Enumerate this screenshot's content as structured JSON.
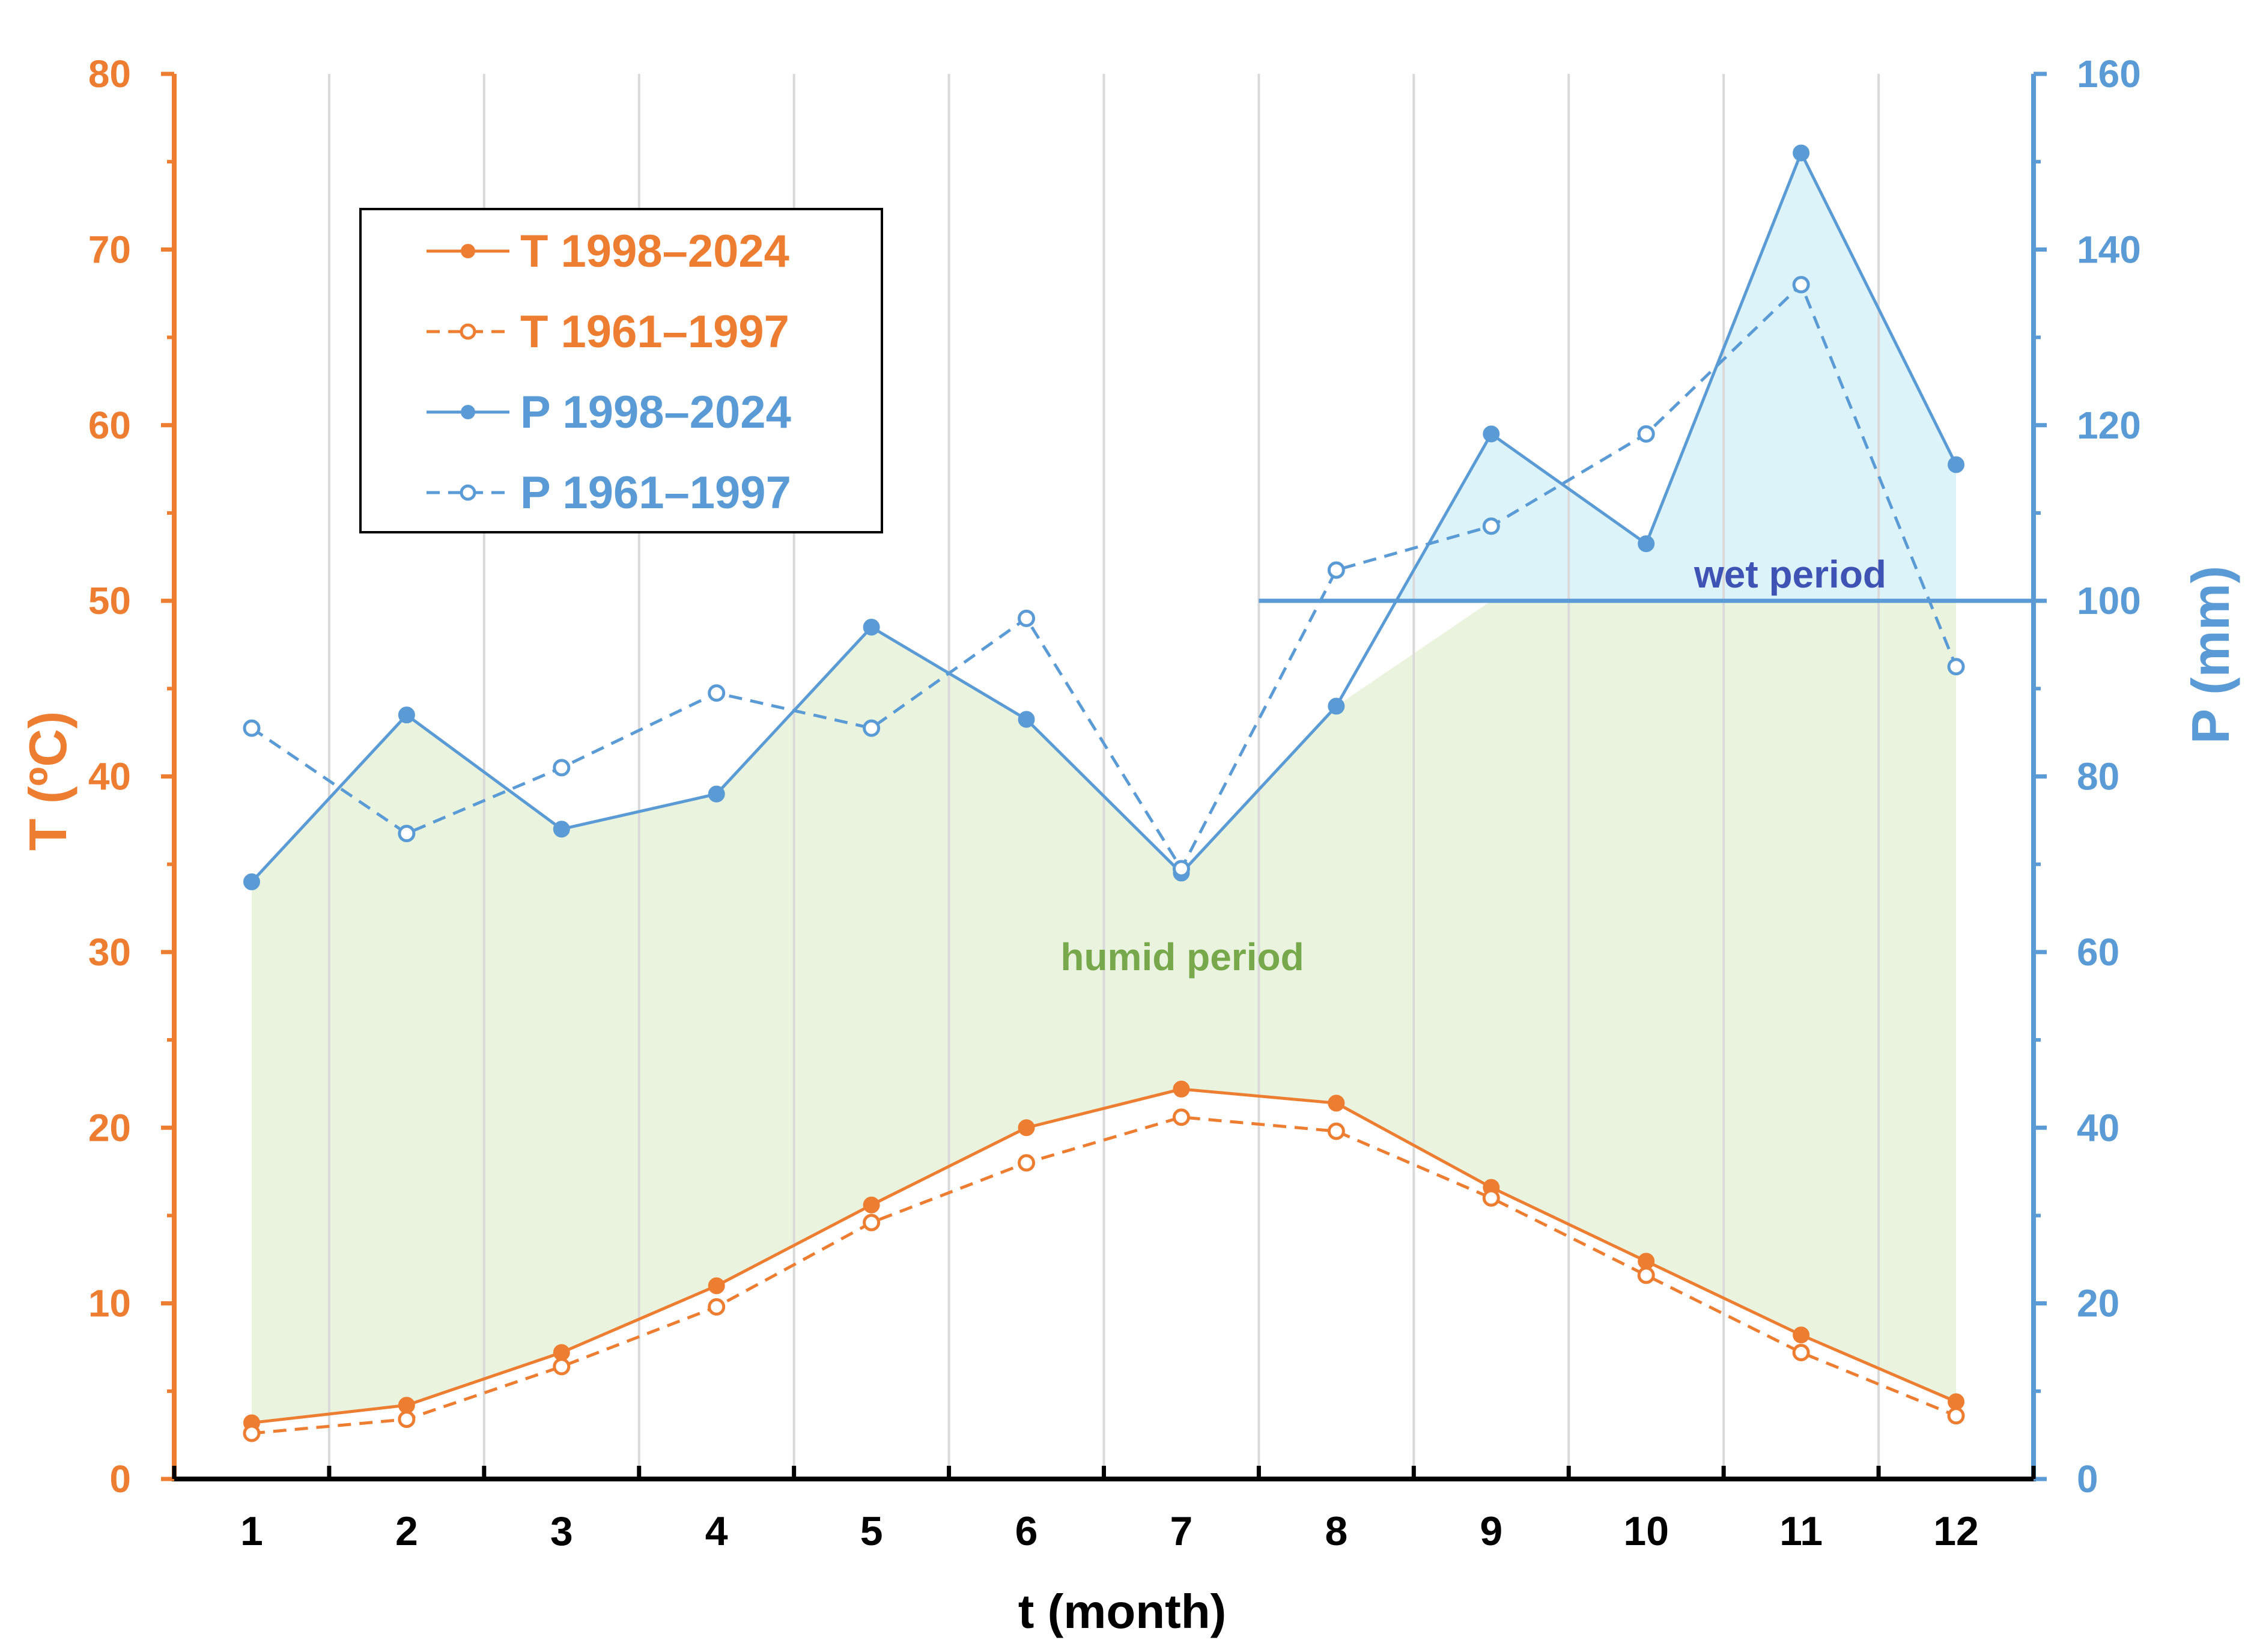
{
  "chart_data": {
    "type": "line",
    "title": "",
    "categories": [
      "1",
      "2",
      "3",
      "4",
      "5",
      "6",
      "7",
      "8",
      "9",
      "10",
      "11",
      "12"
    ],
    "xlabel": "t (month)",
    "ylabel_left": "T (ºC)",
    "ylabel_right": "P (mm)",
    "ylim_left": [
      0,
      80
    ],
    "ylim_right": [
      0,
      160
    ],
    "yticks_left": [
      "0",
      "10",
      "20",
      "30",
      "40",
      "50",
      "60",
      "70",
      "80"
    ],
    "yticks_right": [
      "0",
      "20",
      "40",
      "60",
      "80",
      "100",
      "120",
      "140",
      "160"
    ],
    "grid": "vertical",
    "legend_position": "top-left",
    "series": [
      {
        "name": "T 1998–2024",
        "axis": "left",
        "style": "solid",
        "marker": "filled",
        "color": "#ED7D31",
        "values": [
          3.2,
          4.2,
          7.2,
          11.0,
          15.6,
          20.0,
          22.2,
          21.4,
          16.6,
          12.4,
          8.2,
          4.4
        ]
      },
      {
        "name": "T 1961–1997",
        "axis": "left",
        "style": "dashed",
        "marker": "open",
        "color": "#ED7D31",
        "values": [
          2.6,
          3.4,
          6.4,
          9.8,
          14.6,
          18.0,
          20.6,
          19.8,
          16.0,
          11.6,
          7.2,
          3.6
        ]
      },
      {
        "name": "P 1998–2024",
        "axis": "right",
        "style": "solid",
        "marker": "filled",
        "color": "#5B9BD5",
        "values": [
          68,
          87,
          74,
          78,
          97,
          86.5,
          69,
          88,
          119,
          106.5,
          151,
          115.5
        ]
      },
      {
        "name": "P 1961–1997",
        "axis": "right",
        "style": "dashed",
        "marker": "open",
        "color": "#5B9BD5",
        "values": [
          85.5,
          73.5,
          81,
          89.5,
          85.5,
          98,
          69.5,
          103.5,
          108.5,
          119,
          136,
          92.5
        ]
      }
    ],
    "reference_line": {
      "axis": "right",
      "value": 100,
      "from_x": 7.5,
      "to_x": 13
    },
    "annotations": {
      "humid": "humid period",
      "wet": "wet period"
    },
    "colors": {
      "temperature": "#ED7D31",
      "precipitation": "#5B9BD5",
      "humid_fill": "#EAF3DD",
      "wet_fill": "#DDF3FA",
      "wet_label": "#3F53B5",
      "humid_label": "#77A84C",
      "grid": "#D9D9D9",
      "axis": "#000000"
    }
  }
}
